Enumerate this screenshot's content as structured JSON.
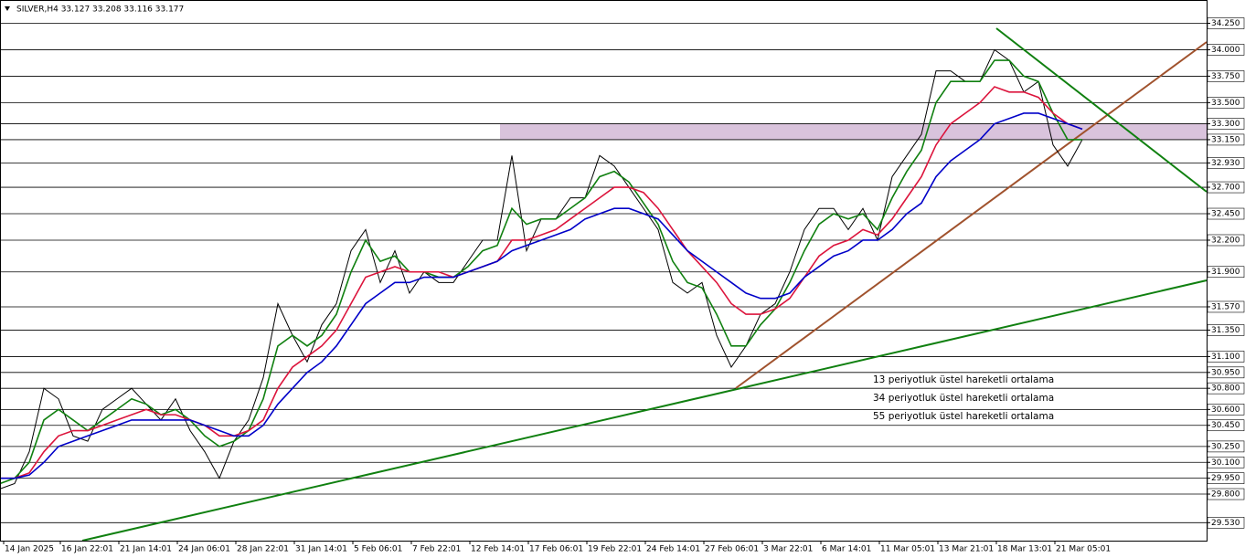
{
  "chart_data": {
    "type": "line",
    "title": "SILVER,H4  33.127 33.208 33.116 33.177",
    "x": [
      0,
      4,
      8,
      12,
      16,
      20,
      24,
      28,
      32,
      36,
      40,
      44,
      48,
      52,
      56,
      60,
      64,
      68,
      72,
      76,
      80,
      84,
      88,
      92,
      96,
      100,
      104,
      108,
      112,
      116,
      120,
      124,
      128,
      132,
      136,
      140,
      144,
      148,
      152,
      156,
      160,
      164,
      168,
      172,
      176,
      180,
      184,
      188,
      192,
      196,
      200,
      204,
      208,
      212,
      216,
      220,
      224,
      228,
      232,
      236,
      240,
      244,
      248,
      252,
      256,
      260,
      264,
      268,
      272,
      276,
      280,
      284,
      288,
      292,
      296
    ],
    "series": [
      {
        "name": "SILVER",
        "color": "#000000",
        "values": [
          29.85,
          29.9,
          30.2,
          30.8,
          30.7,
          30.35,
          30.3,
          30.6,
          30.7,
          30.8,
          30.65,
          30.5,
          30.7,
          30.4,
          30.2,
          29.95,
          30.3,
          30.5,
          30.9,
          31.6,
          31.3,
          31.05,
          31.4,
          31.6,
          32.1,
          32.3,
          31.8,
          32.1,
          31.7,
          31.9,
          31.8,
          31.8,
          32.0,
          32.2,
          32.2,
          33.0,
          32.1,
          32.4,
          32.4,
          32.6,
          32.6,
          33.0,
          32.9,
          32.7,
          32.5,
          32.3,
          31.8,
          31.7,
          31.8,
          31.3,
          31.0,
          31.2,
          31.5,
          31.6,
          31.9,
          32.3,
          32.5,
          32.5,
          32.3,
          32.5,
          32.2,
          32.8,
          33.0,
          33.2,
          33.8,
          33.8,
          33.7,
          33.7,
          34.0,
          33.9,
          33.6,
          33.7,
          33.1,
          32.9,
          33.15
        ]
      },
      {
        "name": "13 periyotluk üstel hareketli ortalama",
        "color": "#108010",
        "values": [
          29.9,
          29.95,
          30.1,
          30.5,
          30.6,
          30.5,
          30.4,
          30.5,
          30.6,
          30.7,
          30.65,
          30.55,
          30.6,
          30.5,
          30.35,
          30.25,
          30.3,
          30.4,
          30.7,
          31.2,
          31.3,
          31.2,
          31.3,
          31.5,
          31.9,
          32.2,
          32.0,
          32.05,
          31.9,
          31.9,
          31.85,
          31.85,
          31.95,
          32.1,
          32.15,
          32.5,
          32.35,
          32.4,
          32.4,
          32.5,
          32.6,
          32.8,
          32.85,
          32.75,
          32.55,
          32.35,
          32.0,
          31.8,
          31.75,
          31.5,
          31.2,
          31.2,
          31.4,
          31.55,
          31.8,
          32.1,
          32.35,
          32.45,
          32.4,
          32.45,
          32.3,
          32.6,
          32.85,
          33.05,
          33.5,
          33.7,
          33.7,
          33.7,
          33.9,
          33.9,
          33.75,
          33.7,
          33.4,
          33.15,
          33.15
        ]
      },
      {
        "name": "34 periyotluk üstel hareketli ortalama",
        "color": "#dc143c",
        "values": [
          29.95,
          29.95,
          30.0,
          30.2,
          30.35,
          30.4,
          30.4,
          30.45,
          30.5,
          30.55,
          30.6,
          30.55,
          30.55,
          30.5,
          30.45,
          30.35,
          30.35,
          30.4,
          30.5,
          30.8,
          31.0,
          31.1,
          31.2,
          31.35,
          31.6,
          31.85,
          31.9,
          31.95,
          31.9,
          31.9,
          31.9,
          31.85,
          31.9,
          31.95,
          32.0,
          32.2,
          32.2,
          32.25,
          32.3,
          32.4,
          32.5,
          32.6,
          32.7,
          32.7,
          32.65,
          32.5,
          32.3,
          32.1,
          31.95,
          31.8,
          31.6,
          31.5,
          31.5,
          31.55,
          31.65,
          31.85,
          32.05,
          32.15,
          32.2,
          32.3,
          32.25,
          32.4,
          32.6,
          32.8,
          33.1,
          33.3,
          33.4,
          33.5,
          33.65,
          33.6,
          33.6,
          33.55,
          33.4,
          33.3,
          33.25
        ]
      },
      {
        "name": "55 periyotluk üstel hareketli ortalama",
        "color": "#0000c8",
        "values": [
          29.95,
          29.95,
          29.98,
          30.1,
          30.25,
          30.3,
          30.35,
          30.4,
          30.45,
          30.5,
          30.5,
          30.5,
          30.5,
          30.5,
          30.45,
          30.4,
          30.35,
          30.35,
          30.45,
          30.65,
          30.8,
          30.95,
          31.05,
          31.2,
          31.4,
          31.6,
          31.7,
          31.8,
          31.8,
          31.85,
          31.85,
          31.85,
          31.9,
          31.95,
          32.0,
          32.1,
          32.15,
          32.2,
          32.25,
          32.3,
          32.4,
          32.45,
          32.5,
          32.5,
          32.45,
          32.4,
          32.25,
          32.1,
          32.0,
          31.9,
          31.8,
          31.7,
          31.65,
          31.65,
          31.7,
          31.85,
          31.95,
          32.05,
          32.1,
          32.2,
          32.2,
          32.3,
          32.45,
          32.55,
          32.8,
          32.95,
          33.05,
          33.15,
          33.3,
          33.35,
          33.4,
          33.4,
          33.35,
          33.3,
          33.25
        ]
      }
    ],
    "xlim": [
      0,
      330
    ],
    "xticks": [
      {
        "value": 1,
        "label": "14 Jan 2025"
      },
      {
        "value": 16.5,
        "label": "16 Jan 22:01"
      },
      {
        "value": 32.5,
        "label": "21 Jan 14:01"
      },
      {
        "value": 48.5,
        "label": "24 Jan 06:01"
      },
      {
        "value": 64.5,
        "label": "28 Jan 22:01"
      },
      {
        "value": 80.5,
        "label": "31 Jan 14:01"
      },
      {
        "value": 96.5,
        "label": "5 Feb 06:01"
      },
      {
        "value": 112.5,
        "label": "7 Feb 22:01"
      },
      {
        "value": 128.5,
        "label": "12 Feb 14:01"
      },
      {
        "value": 144.5,
        "label": "17 Feb 06:01"
      },
      {
        "value": 160.5,
        "label": "19 Feb 22:01"
      },
      {
        "value": 176.5,
        "label": "24 Feb 14:01"
      },
      {
        "value": 192.5,
        "label": "27 Feb 06:01"
      },
      {
        "value": 208.5,
        "label": "3 Mar 22:01"
      },
      {
        "value": 224.5,
        "label": "6 Mar 14:01"
      },
      {
        "value": 240.5,
        "label": "11 Mar 05:01"
      },
      {
        "value": 256.5,
        "label": "13 Mar 21:01"
      },
      {
        "value": 272.5,
        "label": "18 Mar 13:01"
      },
      {
        "value": 288.5,
        "label": "21 Mar 05:01"
      }
    ],
    "ylim": [
      29.36,
      34.47
    ],
    "yticks": [
      {
        "value": 34.25,
        "label": "34.250"
      },
      {
        "value": 34,
        "label": "34.000"
      },
      {
        "value": 33.75,
        "label": "33.750"
      },
      {
        "value": 33.5,
        "label": "33.500"
      },
      {
        "value": 33.3,
        "label": "33.300"
      },
      {
        "value": 33.15,
        "label": "33.150"
      },
      {
        "value": 32.93,
        "label": "32.930"
      },
      {
        "value": 32.7,
        "label": "32.700"
      },
      {
        "value": 32.45,
        "label": "32.450"
      },
      {
        "value": 32.2,
        "label": "32.200"
      },
      {
        "value": 31.9,
        "label": "31.900"
      },
      {
        "value": 31.57,
        "label": "31.570"
      },
      {
        "value": 31.35,
        "label": "31.350"
      },
      {
        "value": 31.1,
        "label": "31.100"
      },
      {
        "value": 30.95,
        "label": "30.950"
      },
      {
        "value": 30.8,
        "label": "30.800"
      },
      {
        "value": 30.6,
        "label": "30.600"
      },
      {
        "value": 30.45,
        "label": "30.450"
      },
      {
        "value": 30.25,
        "label": "30.250"
      },
      {
        "value": 30.1,
        "label": "30.100"
      },
      {
        "value": 29.95,
        "label": "29.950"
      },
      {
        "value": 29.8,
        "label": "29.800"
      },
      {
        "value": 29.53,
        "label": "29.530"
      }
    ],
    "grid": true
  }
}
